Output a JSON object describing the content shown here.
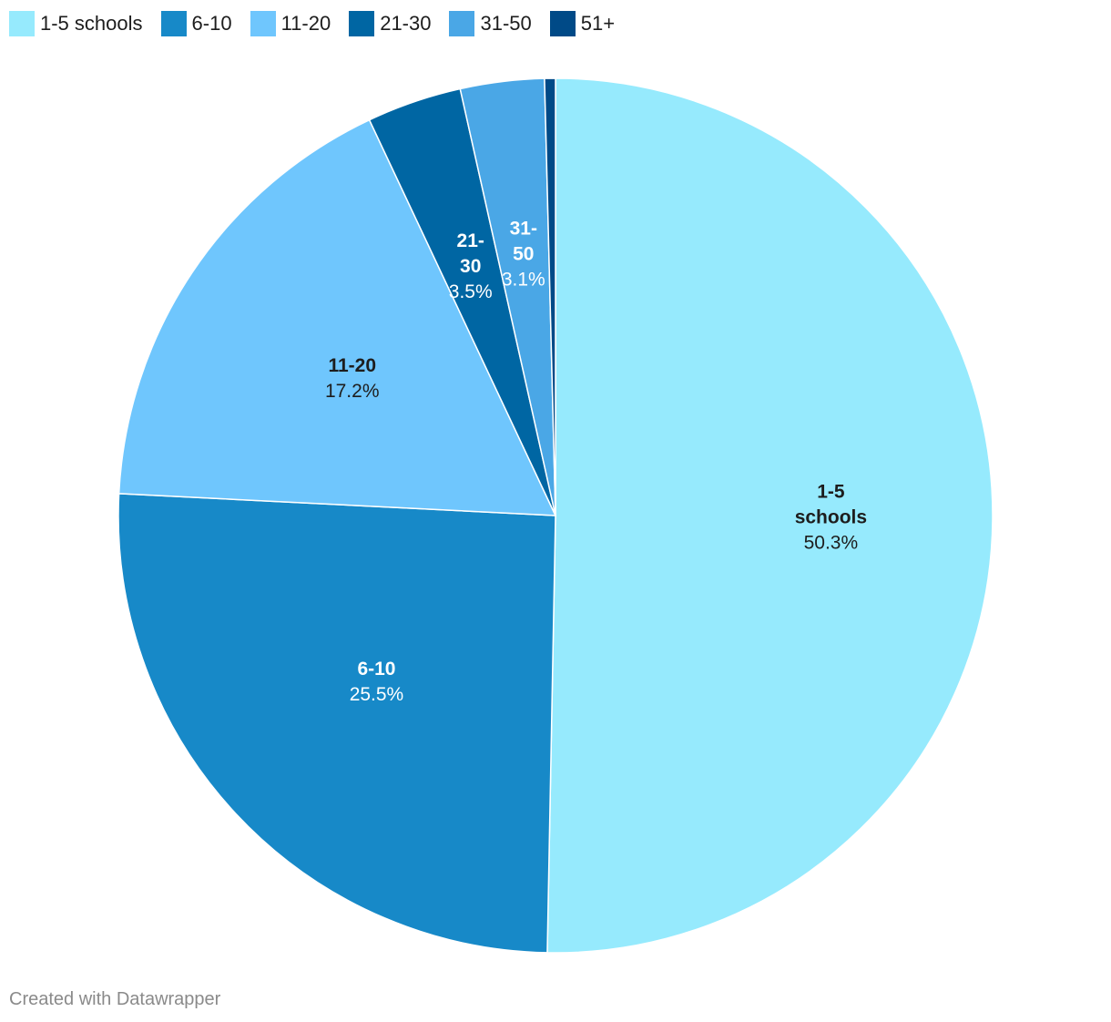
{
  "chart_data": {
    "type": "pie",
    "title": "",
    "categories": [
      "1-5 schools",
      "6-10",
      "11-20",
      "21-30",
      "31-50",
      "51+"
    ],
    "values": [
      50.3,
      25.5,
      17.2,
      3.5,
      3.1,
      0.4
    ],
    "value_labels": [
      "50.3%",
      "25.5%",
      "17.2%",
      "3.5%",
      "3.1%",
      ""
    ],
    "colors": [
      "#96eafd",
      "#1789c8",
      "#6fc6fd",
      "#0066a3",
      "#4aa7e6",
      "#004a87"
    ],
    "label_colors": [
      "#1d1d1d",
      "#ffffff",
      "#1d1d1d",
      "#ffffff",
      "#ffffff",
      "#ffffff"
    ],
    "legend": "top-left",
    "slice_labels": [
      [
        "1-5",
        "schools"
      ],
      [
        "6-10"
      ],
      [
        "11-20"
      ],
      [
        "21-",
        "30"
      ],
      [
        "31-",
        "50"
      ],
      []
    ]
  },
  "footer": "Created with Datawrapper"
}
